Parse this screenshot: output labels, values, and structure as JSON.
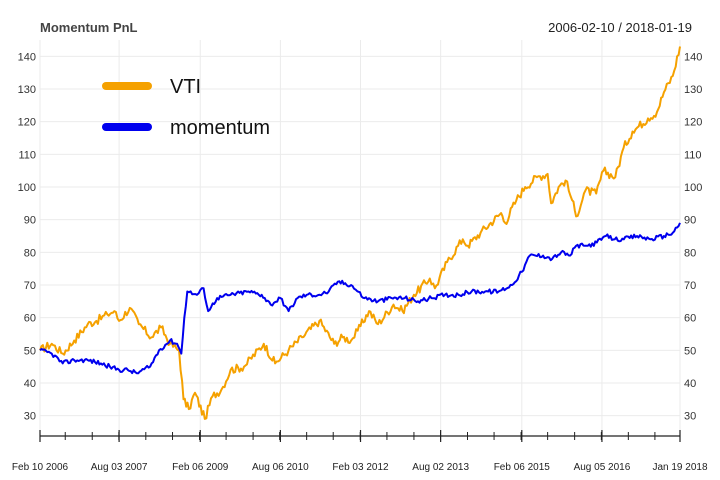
{
  "header": {
    "title": "Momentum PnL",
    "date_range": "2006-02-10 / 2018-01-19"
  },
  "chart_data": {
    "type": "line",
    "x_range": [
      "2006-02-10",
      "2018-01-19"
    ],
    "ylim": [
      25,
      145
    ],
    "y_ticks": [
      30,
      40,
      50,
      60,
      70,
      80,
      90,
      100,
      110,
      120,
      130,
      140
    ],
    "x_ticks": [
      {
        "date": "2006-02-10",
        "label": "Feb 10 2006"
      },
      {
        "date": "2007-08-03",
        "label": "Aug 03 2007"
      },
      {
        "date": "2009-02-06",
        "label": "Feb 06 2009"
      },
      {
        "date": "2010-08-06",
        "label": "Aug 06 2010"
      },
      {
        "date": "2012-02-03",
        "label": "Feb 03 2012"
      },
      {
        "date": "2013-08-02",
        "label": "Aug 02 2013"
      },
      {
        "date": "2015-02-06",
        "label": "Feb 06 2015"
      },
      {
        "date": "2016-08-05",
        "label": "Aug 05 2016"
      },
      {
        "date": "2018-01-19",
        "label": "Jan 19 2018"
      }
    ],
    "grid": true,
    "legend_position": "top-left",
    "series": [
      {
        "name": "VTI",
        "color": "#f5a100",
        "points": [
          [
            "2006-02-10",
            50
          ],
          [
            "2006-05-01",
            52
          ],
          [
            "2006-07-15",
            49
          ],
          [
            "2006-10-01",
            53
          ],
          [
            "2007-01-01",
            58
          ],
          [
            "2007-03-01",
            59
          ],
          [
            "2007-05-15",
            61
          ],
          [
            "2007-07-01",
            62
          ],
          [
            "2007-08-03",
            59
          ],
          [
            "2007-10-15",
            63
          ],
          [
            "2007-12-15",
            58
          ],
          [
            "2008-03-10",
            54
          ],
          [
            "2008-05-15",
            57
          ],
          [
            "2008-07-15",
            52
          ],
          [
            "2008-09-15",
            50
          ],
          [
            "2008-10-15",
            35
          ],
          [
            "2008-11-20",
            32
          ],
          [
            "2009-01-01",
            37
          ],
          [
            "2009-03-09",
            29
          ],
          [
            "2009-05-01",
            36
          ],
          [
            "2009-07-01",
            38
          ],
          [
            "2009-09-01",
            44
          ],
          [
            "2009-12-01",
            45
          ],
          [
            "2010-04-15",
            52
          ],
          [
            "2010-07-01",
            46
          ],
          [
            "2010-10-01",
            50
          ],
          [
            "2011-01-01",
            54
          ],
          [
            "2011-04-29",
            59
          ],
          [
            "2011-08-08",
            52
          ],
          [
            "2011-10-04",
            54
          ],
          [
            "2011-12-01",
            53
          ],
          [
            "2012-01-15",
            56
          ],
          [
            "2012-04-01",
            62
          ],
          [
            "2012-06-01",
            58
          ],
          [
            "2012-09-15",
            64
          ],
          [
            "2012-11-15",
            62
          ],
          [
            "2013-02-01",
            67
          ],
          [
            "2013-05-20",
            72
          ],
          [
            "2013-06-24",
            69
          ],
          [
            "2013-09-15",
            77
          ],
          [
            "2013-12-31",
            84
          ],
          [
            "2014-02-03",
            82
          ],
          [
            "2014-05-01",
            86
          ],
          [
            "2014-09-18",
            92
          ],
          [
            "2014-10-15",
            89
          ],
          [
            "2014-12-31",
            96
          ],
          [
            "2015-03-01",
            100
          ],
          [
            "2015-05-20",
            103
          ],
          [
            "2015-08-01",
            104
          ],
          [
            "2015-08-25",
            95
          ],
          [
            "2015-10-15",
            100
          ],
          [
            "2015-12-01",
            102
          ],
          [
            "2016-01-15",
            96
          ],
          [
            "2016-02-11",
            91
          ],
          [
            "2016-04-15",
            99
          ],
          [
            "2016-06-27",
            98
          ],
          [
            "2016-08-15",
            105
          ],
          [
            "2016-11-04",
            103
          ],
          [
            "2016-12-31",
            112
          ],
          [
            "2017-03-01",
            117
          ],
          [
            "2017-06-15",
            121
          ],
          [
            "2017-08-15",
            123
          ],
          [
            "2017-10-01",
            129
          ],
          [
            "2017-12-01",
            134
          ],
          [
            "2018-01-19",
            143
          ]
        ]
      },
      {
        "name": "momentum",
        "color": "#0000ee",
        "points": [
          [
            "2006-02-10",
            50
          ],
          [
            "2006-05-01",
            49
          ],
          [
            "2006-07-15",
            46
          ],
          [
            "2006-10-01",
            47
          ],
          [
            "2007-01-01",
            47
          ],
          [
            "2007-04-01",
            46
          ],
          [
            "2007-06-01",
            45
          ],
          [
            "2007-08-03",
            44
          ],
          [
            "2007-10-01",
            44
          ],
          [
            "2007-12-01",
            43
          ],
          [
            "2008-03-01",
            45
          ],
          [
            "2008-05-01",
            50
          ],
          [
            "2008-07-15",
            53
          ],
          [
            "2008-09-01",
            52
          ],
          [
            "2008-09-30",
            49
          ],
          [
            "2008-10-20",
            60
          ],
          [
            "2008-11-10",
            68
          ],
          [
            "2009-01-15",
            67
          ],
          [
            "2009-03-01",
            69
          ],
          [
            "2009-04-01",
            62
          ],
          [
            "2009-06-01",
            66
          ],
          [
            "2009-09-01",
            67
          ],
          [
            "2010-01-01",
            68
          ],
          [
            "2010-04-01",
            67
          ],
          [
            "2010-06-01",
            64
          ],
          [
            "2010-08-06",
            66
          ],
          [
            "2010-10-01",
            62
          ],
          [
            "2010-12-01",
            66
          ],
          [
            "2011-02-01",
            67
          ],
          [
            "2011-05-01",
            67
          ],
          [
            "2011-07-01",
            68
          ],
          [
            "2011-09-01",
            71
          ],
          [
            "2011-12-01",
            70
          ],
          [
            "2012-03-01",
            66
          ],
          [
            "2012-06-01",
            65
          ],
          [
            "2012-09-01",
            66
          ],
          [
            "2012-12-01",
            66
          ],
          [
            "2013-03-01",
            65
          ],
          [
            "2013-06-01",
            66
          ],
          [
            "2013-09-01",
            67
          ],
          [
            "2013-12-01",
            67
          ],
          [
            "2014-03-01",
            68
          ],
          [
            "2014-06-01",
            68
          ],
          [
            "2014-09-01",
            68
          ],
          [
            "2014-12-01",
            70
          ],
          [
            "2015-02-06",
            74
          ],
          [
            "2015-04-01",
            79
          ],
          [
            "2015-07-01",
            79
          ],
          [
            "2015-09-01",
            78
          ],
          [
            "2015-11-01",
            80
          ],
          [
            "2016-01-01",
            79
          ],
          [
            "2016-02-11",
            82
          ],
          [
            "2016-05-01",
            82
          ],
          [
            "2016-07-01",
            83
          ],
          [
            "2016-09-01",
            85
          ],
          [
            "2016-11-01",
            84
          ],
          [
            "2017-01-01",
            84
          ],
          [
            "2017-04-01",
            85
          ],
          [
            "2017-07-01",
            84
          ],
          [
            "2017-10-01",
            85
          ],
          [
            "2017-12-01",
            86
          ],
          [
            "2018-01-19",
            89
          ]
        ]
      }
    ]
  }
}
